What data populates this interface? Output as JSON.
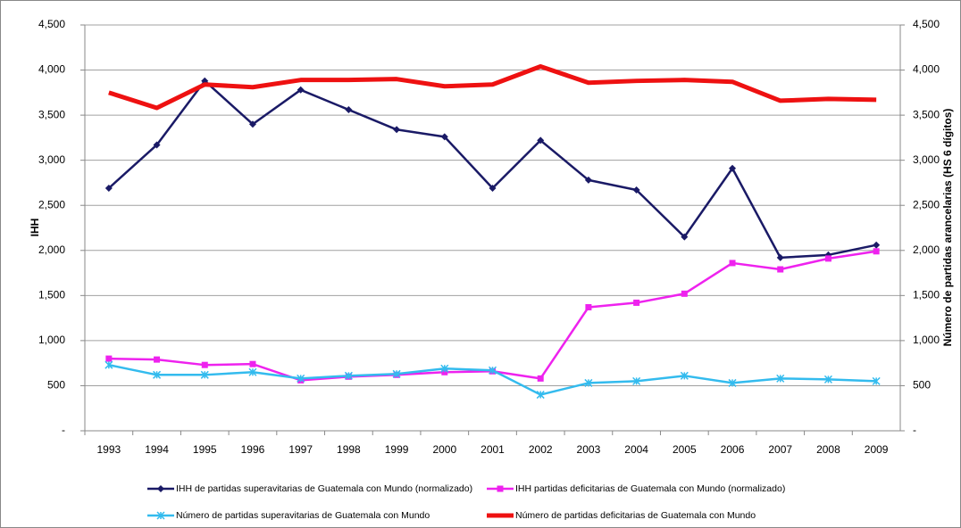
{
  "chart_data": {
    "type": "line",
    "y_label": "IHH",
    "y2_label": "Número de partidas arancelarias (HS 6 dígitos)",
    "categories": [
      "1993",
      "1994",
      "1995",
      "1996",
      "1997",
      "1998",
      "1999",
      "2000",
      "2001",
      "2002",
      "2003",
      "2004",
      "2005",
      "2006",
      "2007",
      "2008",
      "2009"
    ],
    "series": [
      {
        "name": "IHH de partidas superavitarias de Guatemala con Mundo (normalizado)",
        "color": "#1a1a66",
        "marker": "diamond",
        "values": [
          2690,
          3170,
          3880,
          3400,
          3780,
          3560,
          3340,
          3260,
          2690,
          3220,
          2780,
          2670,
          2150,
          2910,
          1920,
          1950,
          2060
        ]
      },
      {
        "name": "IHH partidas deficitarias de Guatemala con Mundo (normalizado)",
        "color": "#ee22ee",
        "marker": "square",
        "values": [
          800,
          790,
          730,
          740,
          560,
          600,
          620,
          650,
          660,
          580,
          1370,
          1420,
          1520,
          1860,
          1790,
          1910,
          1990
        ]
      },
      {
        "name": "Número de partidas superavitarias de Guatemala con Mundo",
        "color": "#33bbee",
        "marker": "star",
        "axis": "y2",
        "values": [
          730,
          620,
          620,
          650,
          580,
          610,
          630,
          690,
          670,
          400,
          530,
          550,
          610,
          530,
          580,
          570,
          550
        ]
      },
      {
        "name": "Número de partidas deficitarias de Guatemala con Mundo",
        "color": "#ee1111",
        "marker": "none",
        "axis": "y2",
        "values": [
          3750,
          3580,
          3840,
          3810,
          3890,
          3890,
          3900,
          3820,
          3840,
          4040,
          3860,
          3880,
          3890,
          3870,
          3660,
          3680,
          3670
        ]
      }
    ],
    "ylim": [
      0,
      4500
    ],
    "yticks": [
      {
        "value": 0,
        "label": "-"
      },
      500,
      {
        "value": 1000,
        "label": "1,000"
      },
      {
        "value": 1500,
        "label": "1,500"
      },
      {
        "value": 2000,
        "label": "2,000"
      },
      {
        "value": 2500,
        "label": "2,500"
      },
      {
        "value": 3000,
        "label": "3,000"
      },
      {
        "value": 3500,
        "label": "3,500"
      },
      {
        "value": 4000,
        "label": "4,000"
      },
      {
        "value": 4500,
        "label": "4,500"
      }
    ],
    "y2lim": [
      0,
      4500
    ],
    "y2ticks": [
      {
        "value": 0,
        "label": "-"
      },
      500,
      {
        "value": 1000,
        "label": "1,000"
      },
      {
        "value": 1500,
        "label": "1,500"
      },
      {
        "value": 2000,
        "label": "2,000"
      },
      {
        "value": 2500,
        "label": "2,500"
      },
      {
        "value": 3000,
        "label": "3,000"
      },
      {
        "value": 3500,
        "label": "3,500"
      },
      {
        "value": 4000,
        "label": "4,000"
      },
      {
        "value": 4500,
        "label": "4,500"
      }
    ],
    "grid": true
  }
}
